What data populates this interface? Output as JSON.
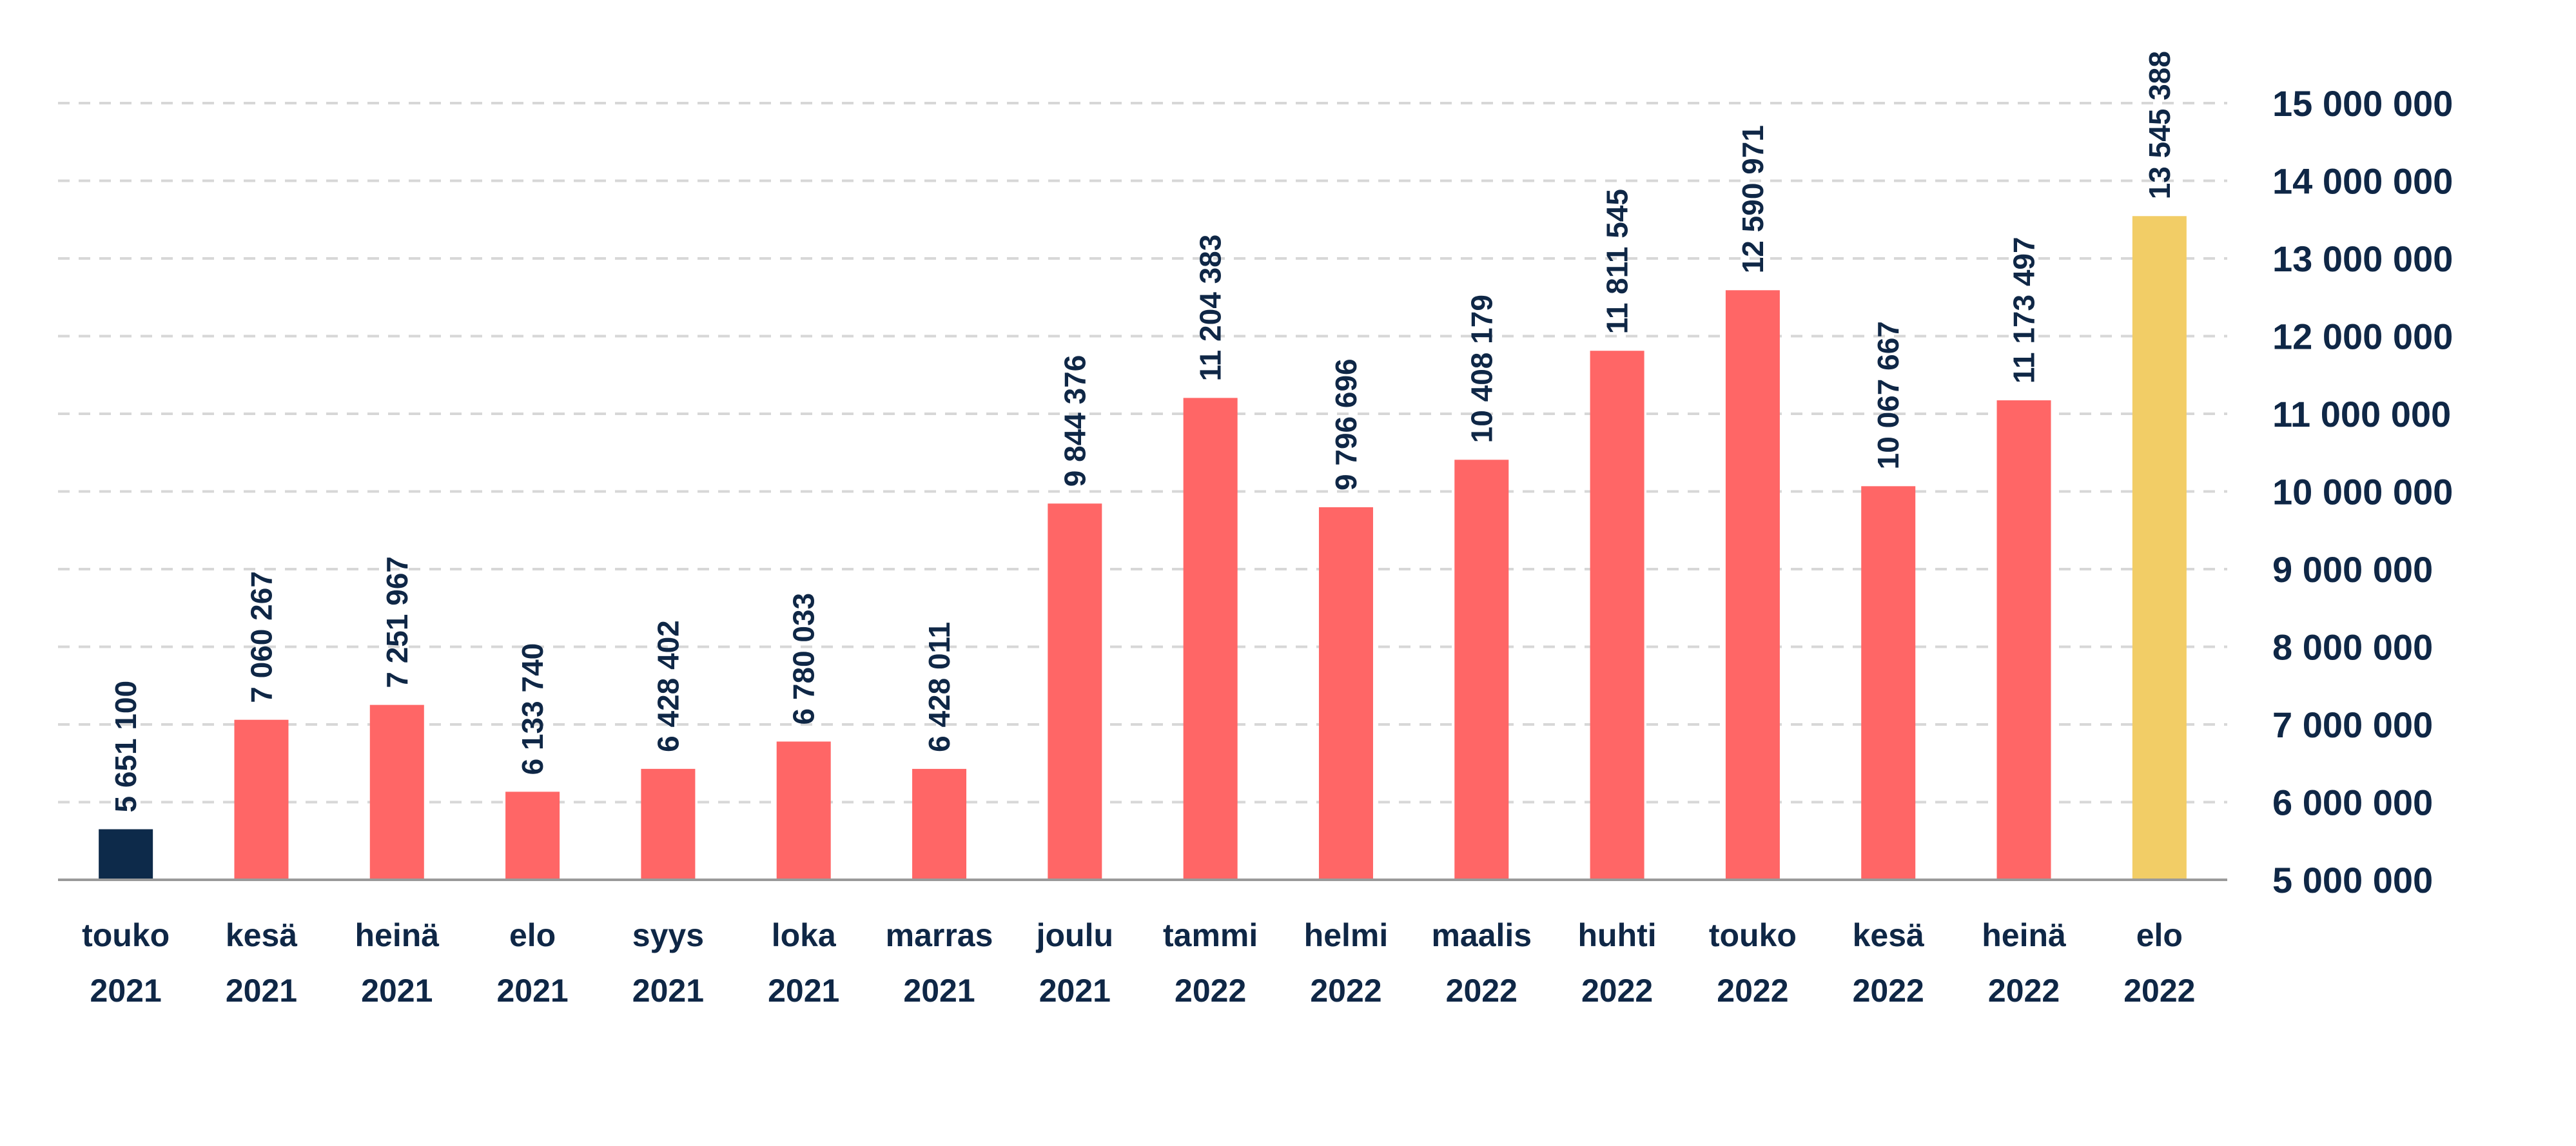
{
  "chart_data": {
    "type": "bar",
    "title": "",
    "xlabel": "",
    "ylabel": "",
    "categories": [
      [
        "touko",
        "2021"
      ],
      [
        "kesä",
        "2021"
      ],
      [
        "heinä",
        "2021"
      ],
      [
        "elo",
        "2021"
      ],
      [
        "syys",
        "2021"
      ],
      [
        "loka",
        "2021"
      ],
      [
        "marras",
        "2021"
      ],
      [
        "joulu",
        "2021"
      ],
      [
        "tammi",
        "2022"
      ],
      [
        "helmi",
        "2022"
      ],
      [
        "maalis",
        "2022"
      ],
      [
        "huhti",
        "2022"
      ],
      [
        "touko",
        "2022"
      ],
      [
        "kesä",
        "2022"
      ],
      [
        "heinä",
        "2022"
      ],
      [
        "elo",
        "2022"
      ]
    ],
    "values": [
      5651100,
      7060267,
      7251967,
      6133740,
      6428402,
      6780033,
      6428011,
      9844376,
      11204383,
      9796696,
      10408179,
      11811545,
      12590971,
      10067667,
      11173497,
      13545388
    ],
    "value_labels": [
      "5 651 100",
      "7 060 267",
      "7 251 967",
      "6 133 740",
      "6 428 402",
      "6 780 033",
      "6 428 011",
      "9 844 376",
      "11 204 383",
      "9 796 696",
      "10 408 179",
      "11 811 545",
      "12 590 971",
      "10 067 667",
      "11 173 497",
      "13 545 388"
    ],
    "bar_colors": [
      "#0d2a4a",
      "#ff6666",
      "#ff6666",
      "#ff6666",
      "#ff6666",
      "#ff6666",
      "#ff6666",
      "#ff6666",
      "#ff6666",
      "#ff6666",
      "#ff6666",
      "#ff6666",
      "#ff6666",
      "#ff6666",
      "#ff6666",
      "#f2cd66"
    ],
    "ylim": [
      5000000,
      15000000
    ],
    "y_ticks": [
      5000000,
      6000000,
      7000000,
      8000000,
      9000000,
      10000000,
      11000000,
      12000000,
      13000000,
      14000000,
      15000000
    ],
    "y_tick_labels": [
      "5 000 000",
      "6 000 000",
      "7 000 000",
      "8 000 000",
      "9 000 000",
      "10 000 000",
      "11 000 000",
      "12 000 000",
      "13 000 000",
      "14 000 000",
      "15 000 000"
    ],
    "y_axis_position": "right",
    "grid": true,
    "grid_style": "dashed",
    "legend": "none",
    "colors": {
      "text": "#0f2746",
      "grid": "#d7d7d7",
      "axis": "#9a9a9a"
    }
  }
}
